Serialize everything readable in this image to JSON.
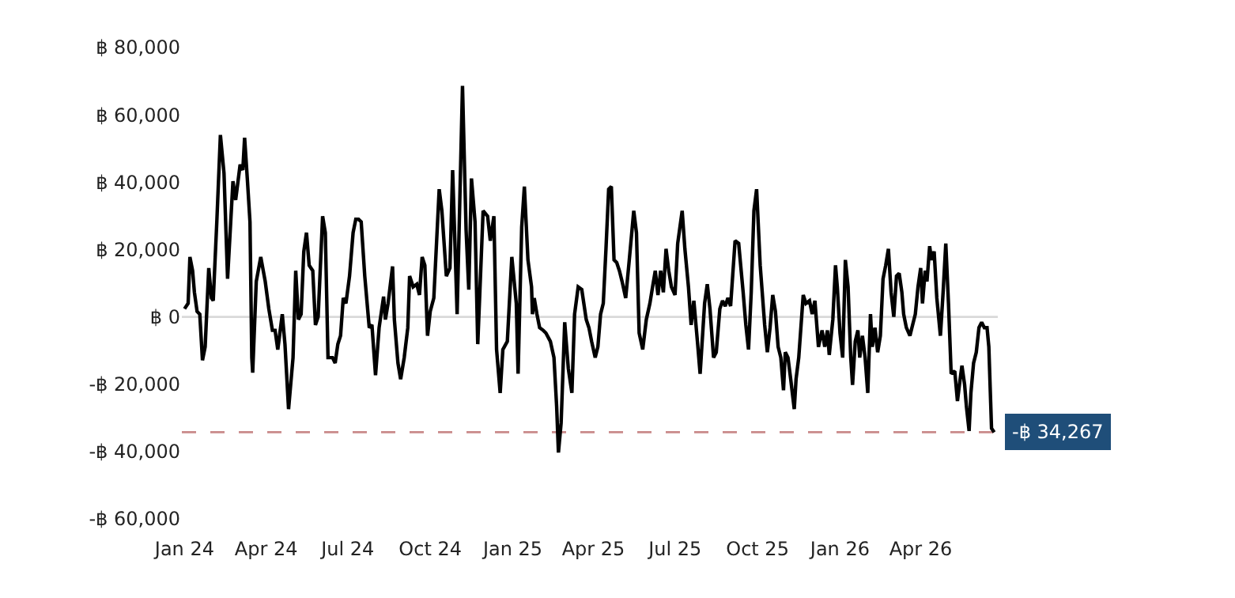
{
  "chart_data": {
    "type": "line",
    "x": [
      "2024-01-01",
      "2024-01-05",
      "2024-01-07",
      "2024-01-10",
      "2024-01-12",
      "2024-01-15",
      "2024-01-18",
      "2024-01-21",
      "2024-01-24",
      "2024-01-28",
      "2024-01-31",
      "2024-02-02",
      "2024-02-06",
      "2024-02-10",
      "2024-02-14",
      "2024-02-18",
      "2024-02-24",
      "2024-02-27",
      "2024-03-03",
      "2024-03-06",
      "2024-03-08",
      "2024-03-11",
      "2024-03-14",
      "2024-03-16",
      "2024-03-17",
      "2024-03-21",
      "2024-03-26",
      "2024-03-31",
      "2024-04-04",
      "2024-04-08",
      "2024-04-11",
      "2024-04-14",
      "2024-04-19",
      "2024-04-22",
      "2024-04-26",
      "2024-05-01",
      "2024-05-04",
      "2024-05-07",
      "2024-05-10",
      "2024-05-13",
      "2024-05-16",
      "2024-05-19",
      "2024-05-23",
      "2024-05-26",
      "2024-05-29",
      "2024-06-03",
      "2024-06-06",
      "2024-06-09",
      "2024-06-14",
      "2024-06-17",
      "2024-06-20",
      "2024-06-23",
      "2024-06-26",
      "2024-06-29",
      "2024-07-03",
      "2024-07-07",
      "2024-07-10",
      "2024-07-13",
      "2024-07-16",
      "2024-07-20",
      "2024-07-25",
      "2024-07-28",
      "2024-08-01",
      "2024-08-05",
      "2024-08-10",
      "2024-08-12",
      "2024-08-15",
      "2024-08-20",
      "2024-08-22",
      "2024-08-26",
      "2024-08-29",
      "2024-09-02",
      "2024-09-06",
      "2024-09-08",
      "2024-09-12",
      "2024-09-16",
      "2024-09-19",
      "2024-09-22",
      "2024-09-25",
      "2024-09-28",
      "2024-10-01",
      "2024-10-05",
      "2024-10-11",
      "2024-10-14",
      "2024-10-19",
      "2024-10-23",
      "2024-10-26",
      "2024-10-31",
      "2024-11-06",
      "2024-11-10",
      "2024-11-13",
      "2024-11-16",
      "2024-11-20",
      "2024-11-23",
      "2024-11-29",
      "2024-12-04",
      "2024-12-07",
      "2024-12-11",
      "2024-12-14",
      "2024-12-18",
      "2024-12-21",
      "2024-12-26",
      "2024-12-31",
      "2025-01-05",
      "2025-01-07",
      "2025-01-11",
      "2025-01-14",
      "2025-01-18",
      "2025-01-22",
      "2025-01-23",
      "2025-01-25",
      "2025-01-28",
      "2025-01-31",
      "2025-02-04",
      "2025-02-07",
      "2025-02-12",
      "2025-02-16",
      "2025-02-19",
      "2025-02-21",
      "2025-02-24",
      "2025-02-28",
      "2025-03-04",
      "2025-03-08",
      "2025-03-11",
      "2025-03-15",
      "2025-03-19",
      "2025-03-24",
      "2025-03-27",
      "2025-03-30",
      "2025-04-03",
      "2025-04-06",
      "2025-04-09",
      "2025-04-12",
      "2025-04-15",
      "2025-04-18",
      "2025-04-21",
      "2025-04-24",
      "2025-04-27",
      "2025-04-30",
      "2025-05-03",
      "2025-05-07",
      "2025-05-11",
      "2025-05-16",
      "2025-05-19",
      "2025-05-22",
      "2025-05-26",
      "2025-05-30",
      "2025-06-03",
      "2025-06-06",
      "2025-06-09",
      "2025-06-12",
      "2025-06-15",
      "2025-06-18",
      "2025-06-21",
      "2025-06-24",
      "2025-06-27",
      "2025-07-01",
      "2025-07-04",
      "2025-07-09",
      "2025-07-12",
      "2025-07-16",
      "2025-07-19",
      "2025-07-22",
      "2025-07-26",
      "2025-07-29",
      "2025-08-03",
      "2025-08-06",
      "2025-08-09",
      "2025-08-13",
      "2025-08-16",
      "2025-08-20",
      "2025-08-23",
      "2025-08-26",
      "2025-08-29",
      "2025-09-01",
      "2025-09-06",
      "2025-09-10",
      "2025-09-15",
      "2025-09-18",
      "2025-09-21",
      "2025-09-24",
      "2025-09-27",
      "2025-09-30",
      "2025-10-04",
      "2025-10-09",
      "2025-10-12",
      "2025-10-15",
      "2025-10-18",
      "2025-10-21",
      "2025-10-24",
      "2025-10-27",
      "2025-10-30",
      "2025-11-01",
      "2025-11-04",
      "2025-11-07",
      "2025-11-11",
      "2025-11-13",
      "2025-11-16",
      "2025-11-21",
      "2025-11-24",
      "2025-11-28",
      "2025-12-01",
      "2025-12-04",
      "2025-12-08",
      "2025-12-12",
      "2025-12-15",
      "2025-12-18",
      "2025-12-20",
      "2025-12-24",
      "2025-12-27",
      "2025-12-29",
      "2026-01-01",
      "2026-01-04",
      "2026-01-07",
      "2026-01-10",
      "2026-01-13",
      "2026-01-15",
      "2026-01-18",
      "2026-01-21",
      "2026-01-23",
      "2026-01-26",
      "2026-01-29",
      "2026-02-01",
      "2026-02-04",
      "2026-02-06",
      "2026-02-09",
      "2026-02-12",
      "2026-02-15",
      "2026-02-18",
      "2026-02-21",
      "2026-02-24",
      "2026-02-27",
      "2026-03-02",
      "2026-03-05",
      "2026-03-08",
      "2026-03-11",
      "2026-03-13",
      "2026-03-16",
      "2026-03-20",
      "2026-03-23",
      "2026-03-26",
      "2026-03-29",
      "2026-04-01",
      "2026-04-03",
      "2026-04-06",
      "2026-04-08",
      "2026-04-11",
      "2026-04-13",
      "2026-04-16",
      "2026-04-19",
      "2026-04-23",
      "2026-04-26",
      "2026-04-29",
      "2026-05-02",
      "2026-05-05",
      "2026-05-09",
      "2026-05-12",
      "2026-05-15",
      "2026-05-17",
      "2026-05-20",
      "2026-05-22",
      "2026-05-25",
      "2026-05-27",
      "2026-05-30",
      "2026-06-02",
      "2026-06-05",
      "2026-06-08",
      "2026-06-11",
      "2026-06-14",
      "2026-06-16",
      "2026-06-19",
      "2026-06-22"
    ],
    "series": [
      {
        "color": "#000000",
        "values": [
          2400,
          4000,
          17800,
          13700,
          7300,
          1600,
          800,
          -12900,
          -8900,
          14500,
          5600,
          4800,
          28200,
          54000,
          42700,
          11300,
          40300,
          34700,
          45200,
          43600,
          53200,
          41100,
          28200,
          -12100,
          -16600,
          10500,
          17800,
          10500,
          2400,
          -4000,
          -4000,
          -9700,
          800,
          -8100,
          -27400,
          -12100,
          13700,
          -800,
          800,
          19400,
          25000,
          15300,
          13700,
          -2400,
          0,
          29900,
          25000,
          -12100,
          -12100,
          -13700,
          -8100,
          -5600,
          5600,
          4000,
          12100,
          25000,
          29000,
          29000,
          28200,
          12100,
          -3200,
          -2400,
          -17300,
          -3200,
          6000,
          -800,
          4000,
          15000,
          -800,
          -13700,
          -18500,
          -12100,
          -3200,
          12100,
          8900,
          9700,
          6500,
          17800,
          15300,
          -5600,
          1600,
          5600,
          37900,
          31500,
          12100,
          14500,
          43600,
          800,
          68600,
          25800,
          8100,
          41100,
          28200,
          -8100,
          31500,
          29900,
          22600,
          29900,
          -9700,
          -22600,
          -9700,
          -7300,
          17800,
          4000,
          -16900,
          26600,
          38700,
          16900,
          8900,
          800,
          5600,
          800,
          -3200,
          -4000,
          -4800,
          -7300,
          -12100,
          -26600,
          -40300,
          -31500,
          -1600,
          -15300,
          -22600,
          800,
          8900,
          8100,
          -800,
          -3200,
          -7300,
          -12100,
          -8900,
          800,
          4000,
          20200,
          37900,
          38700,
          16900,
          16100,
          13700,
          10500,
          5600,
          16900,
          31500,
          25000,
          -4800,
          -9700,
          -800,
          4000,
          8900,
          13700,
          6500,
          13700,
          7300,
          20200,
          13700,
          8900,
          6500,
          21800,
          31500,
          20200,
          8900,
          -2400,
          4800,
          -7300,
          -16900,
          4000,
          9700,
          2400,
          -12100,
          -10500,
          2400,
          4800,
          3200,
          5600,
          3200,
          22600,
          21800,
          7300,
          -2400,
          -9700,
          7300,
          31500,
          37900,
          15300,
          -2400,
          -10500,
          -3200,
          6500,
          1600,
          -8900,
          -12100,
          -21800,
          -10500,
          -12100,
          -18500,
          -27400,
          -18500,
          -12100,
          6500,
          4000,
          4800,
          800,
          4800,
          -8900,
          -4000,
          -8900,
          -4000,
          -11300,
          -800,
          15300,
          8900,
          -4800,
          -12100,
          16900,
          8900,
          -12100,
          -20200,
          -7300,
          -4000,
          -12100,
          -5600,
          -12100,
          -22600,
          800,
          -8900,
          -3200,
          -10500,
          -5600,
          11300,
          15300,
          20200,
          7300,
          0,
          12100,
          12900,
          7300,
          800,
          -3200,
          -5600,
          -2400,
          800,
          8900,
          14500,
          4000,
          13700,
          10500,
          21000,
          16900,
          19400,
          5600,
          -5600,
          7300,
          21800,
          4000,
          -16900,
          -16100,
          -25000,
          -18500,
          -14500,
          -20200,
          -26600,
          -33900,
          -22600,
          -13700,
          -10500,
          -3200,
          -1600,
          -3200,
          -3200,
          -8900,
          -33100,
          -34267
        ]
      }
    ],
    "xlim": [
      "2023-12-29",
      "2026-06-26"
    ],
    "xticks": [
      {
        "value": "2024-01-01",
        "label": "Jan 24"
      },
      {
        "value": "2024-04-01",
        "label": "Apr 24"
      },
      {
        "value": "2024-07-01",
        "label": "Jul 24"
      },
      {
        "value": "2024-10-01",
        "label": "Oct 24"
      },
      {
        "value": "2025-01-01",
        "label": "Jan 25"
      },
      {
        "value": "2025-04-01",
        "label": "Apr 25"
      },
      {
        "value": "2025-07-01",
        "label": "Jul 25"
      },
      {
        "value": "2025-10-01",
        "label": "Oct 25"
      },
      {
        "value": "2026-01-01",
        "label": "Jan 26"
      },
      {
        "value": "2026-04-01",
        "label": "Apr 26"
      }
    ],
    "ylim": [
      -60000,
      80000
    ],
    "yticks": [
      {
        "value": -60000,
        "label": "-฿ 60,000"
      },
      {
        "value": -40000,
        "label": "-฿ 40,000"
      },
      {
        "value": -20000,
        "label": "-฿ 20,000"
      },
      {
        "value": 0,
        "label": "฿ 0"
      },
      {
        "value": 20000,
        "label": "฿ 20,000"
      },
      {
        "value": 40000,
        "label": "฿ 40,000"
      },
      {
        "value": 60000,
        "label": "฿ 60,000"
      },
      {
        "value": 80000,
        "label": "฿ 80,000"
      }
    ],
    "ref_lines": [
      {
        "axis": "y",
        "value": 0,
        "color": "#d9d9d9",
        "line_style": "solid"
      },
      {
        "axis": "y",
        "value": -34267,
        "label": "-฿ 34,267",
        "color": "#c98a8a",
        "line_style": "dashed"
      }
    ],
    "grid": false,
    "legend": false,
    "marker": "none",
    "line_style": "solid"
  }
}
